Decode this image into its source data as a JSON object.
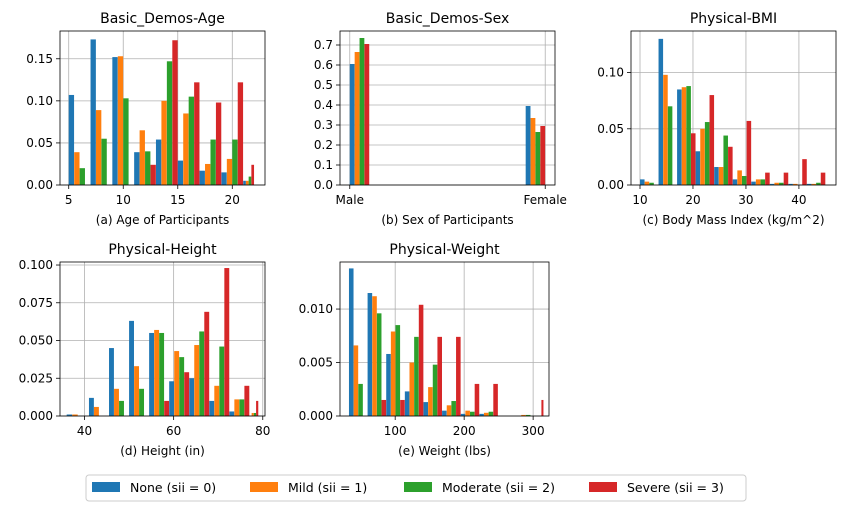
{
  "legend": [
    {
      "label": "None (sii = 0)",
      "color": "#1f77b4"
    },
    {
      "label": "Mild (sii = 1)",
      "color": "#ff7f0e"
    },
    {
      "label": "Moderate (sii = 2)",
      "color": "#2ca02c"
    },
    {
      "label": "Severe (sii = 3)",
      "color": "#d62728"
    }
  ],
  "chart_data": [
    {
      "type": "bar",
      "title": "Basic_Demos-Age",
      "xlabel": "(a) Age of Participants",
      "xlim": [
        4.2,
        23.0
      ],
      "ylim": [
        0,
        0.183
      ],
      "xticks": [
        5,
        10,
        15,
        20
      ],
      "xtick_labels": [
        "5",
        "10",
        "15",
        "20"
      ],
      "yticks": [
        0,
        0.05,
        0.1,
        0.15
      ],
      "ytick_labels": [
        "0.00",
        "0.05",
        "0.10",
        "0.15"
      ],
      "grid": true,
      "bin_edges": [
        5,
        7,
        9,
        11,
        13,
        15,
        17,
        19,
        21,
        22
      ],
      "series": [
        {
          "values": [
            0.107,
            0.173,
            0.152,
            0.039,
            0.054,
            0.029,
            0.017,
            0.015,
            0.005
          ]
        },
        {
          "values": [
            0.039,
            0.089,
            0.153,
            0.065,
            0.1,
            0.085,
            0.025,
            0.031,
            0.005
          ]
        },
        {
          "values": [
            0.02,
            0.055,
            0.103,
            0.04,
            0.147,
            0.105,
            0.054,
            0.054,
            0.01
          ]
        },
        {
          "values": [
            0.0,
            0.0,
            0.0,
            0.024,
            0.172,
            0.122,
            0.098,
            0.122,
            0.024
          ]
        }
      ]
    },
    {
      "type": "bar",
      "title": "Basic_Demos-Sex",
      "xlabel": "(b) Sex of Participants",
      "xlim": [
        -0.05,
        1.05
      ],
      "ylim": [
        0,
        0.77
      ],
      "xticks": [
        0,
        1
      ],
      "xtick_labels": [
        "Male",
        "Female"
      ],
      "yticks": [
        0,
        0.1,
        0.2,
        0.3,
        0.4,
        0.5,
        0.6,
        0.7
      ],
      "ytick_labels": [
        "0.0",
        "0.1",
        "0.2",
        "0.3",
        "0.4",
        "0.5",
        "0.6",
        "0.7"
      ],
      "grid": true,
      "bin_edges": [
        0,
        0.1,
        0.9,
        1
      ],
      "series": [
        {
          "values": [
            0.605,
            0,
            0.395
          ]
        },
        {
          "values": [
            0.665,
            0,
            0.335
          ]
        },
        {
          "values": [
            0.735,
            0,
            0.265
          ]
        },
        {
          "values": [
            0.705,
            0,
            0.295
          ]
        }
      ]
    },
    {
      "type": "bar",
      "title": "Physical-BMI",
      "xlabel": "(c) Body Mass Index (kg/m^2)",
      "xlim": [
        8.3,
        47.0
      ],
      "ylim": [
        0,
        0.137
      ],
      "xticks": [
        10,
        20,
        30,
        40
      ],
      "xtick_labels": [
        "10",
        "20",
        "30",
        "40"
      ],
      "yticks": [
        0,
        0.05,
        0.1
      ],
      "ytick_labels": [
        "0.00",
        "0.05",
        "0.10"
      ],
      "grid": true,
      "bin_edges": [
        10,
        13.5,
        17,
        20.5,
        24,
        27.5,
        31,
        34.5,
        38,
        41.5,
        45
      ],
      "series": [
        {
          "values": [
            0.005,
            0.13,
            0.085,
            0.03,
            0.016,
            0.005,
            0.003,
            0.001,
            0.001,
            0.001
          ]
        },
        {
          "values": [
            0.003,
            0.098,
            0.087,
            0.05,
            0.016,
            0.013,
            0.005,
            0.002,
            0.001,
            0.001
          ]
        },
        {
          "values": [
            0.002,
            0.07,
            0.088,
            0.056,
            0.044,
            0.008,
            0.005,
            0.002,
            0.0,
            0.002
          ]
        },
        {
          "values": [
            0.0,
            0.0,
            0.046,
            0.08,
            0.034,
            0.057,
            0.011,
            0.011,
            0.023,
            0.011
          ]
        }
      ]
    },
    {
      "type": "bar",
      "title": "Physical-Height",
      "xlabel": "(d) Height (in)",
      "xlim": [
        34.5,
        80.5
      ],
      "ylim": [
        0,
        0.102
      ],
      "xticks": [
        40,
        60,
        80
      ],
      "xtick_labels": [
        "40",
        "60",
        "80"
      ],
      "yticks": [
        0,
        0.025,
        0.05,
        0.075,
        0.1
      ],
      "ytick_labels": [
        "0.000",
        "0.025",
        "0.050",
        "0.075",
        "0.100"
      ],
      "grid": true,
      "bin_edges": [
        36,
        41,
        45.5,
        50,
        54.5,
        59,
        63.5,
        68,
        72.5,
        77,
        79
      ],
      "series": [
        {
          "values": [
            0.001,
            0.012,
            0.045,
            0.063,
            0.055,
            0.023,
            0.025,
            0.01,
            0.003,
            0.0
          ]
        },
        {
          "values": [
            0.001,
            0.006,
            0.018,
            0.033,
            0.057,
            0.043,
            0.047,
            0.02,
            0.011,
            0.002
          ]
        },
        {
          "values": [
            0.0,
            0.0,
            0.01,
            0.018,
            0.055,
            0.039,
            0.056,
            0.046,
            0.011,
            0.002
          ]
        },
        {
          "values": [
            0.0,
            0.0,
            0.0,
            0.0,
            0.01,
            0.029,
            0.069,
            0.098,
            0.02,
            0.01
          ]
        }
      ]
    },
    {
      "type": "bar",
      "title": "Physical-Weight",
      "xlabel": "(e) Weight (lbs)",
      "xlim": [
        20,
        323
      ],
      "ylim": [
        0,
        0.0144
      ],
      "xticks": [
        100,
        200,
        300
      ],
      "xtick_labels": [
        "100",
        "200",
        "300"
      ],
      "yticks": [
        0,
        0.005,
        0.01
      ],
      "ytick_labels": [
        "0.000",
        "0.005",
        "0.010"
      ],
      "grid": true,
      "bin_edges": [
        33,
        60,
        87,
        114,
        141,
        168,
        195,
        222,
        249,
        276,
        303,
        315
      ],
      "series": [
        {
          "values": [
            0.0138,
            0.0115,
            0.0058,
            0.0023,
            0.0013,
            0.0005,
            0.0002,
            0.0002,
            0.0,
            0.0,
            0.0
          ]
        },
        {
          "values": [
            0.0066,
            0.0112,
            0.0079,
            0.005,
            0.0027,
            0.001,
            0.0005,
            0.0003,
            0.0,
            0.0001,
            0.0
          ]
        },
        {
          "values": [
            0.003,
            0.0096,
            0.0085,
            0.0074,
            0.0048,
            0.0014,
            0.0004,
            0.0004,
            0.0,
            0.0001,
            0.0
          ]
        },
        {
          "values": [
            0.0,
            0.0015,
            0.0015,
            0.0104,
            0.0074,
            0.0074,
            0.003,
            0.003,
            0.0,
            0.0,
            0.0015
          ]
        }
      ]
    }
  ]
}
